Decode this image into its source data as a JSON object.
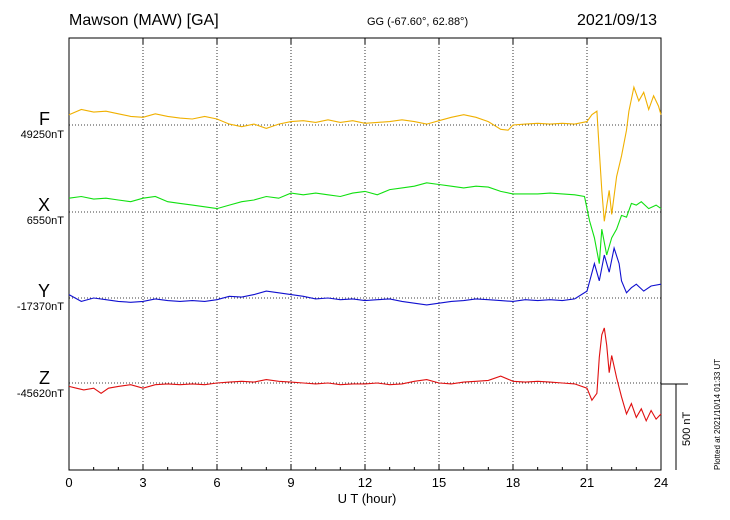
{
  "header": {
    "title": "Mawson (MAW)  [GA]",
    "coords": "GG (-67.60°,  62.88°)",
    "date": "2021/09/13"
  },
  "footer": {
    "plotted": "Plotted at 2021/10/14 01:33 UT",
    "scale": "500 nT"
  },
  "components": [
    {
      "letter": "F",
      "baseline": "49250nT",
      "color": "#f0b000"
    },
    {
      "letter": "X",
      "baseline": "6550nT",
      "color": "#10e010"
    },
    {
      "letter": "Y",
      "baseline": "-17370nT",
      "color": "#1010d0"
    },
    {
      "letter": "Z",
      "baseline": "-45620nT",
      "color": "#e01010"
    }
  ],
  "chart_data": {
    "type": "line",
    "xlabel": "U T (hour)",
    "xlim": [
      0,
      24
    ],
    "xticks": [
      "0",
      "3",
      "6",
      "9",
      "12",
      "15",
      "18",
      "21",
      "24"
    ],
    "ylabel": "",
    "scale_bar_nT": 500,
    "grid": true,
    "series": [
      {
        "name": "F",
        "color": "#f0b000",
        "baseline_nT": 49250,
        "points": [
          [
            0,
            60
          ],
          [
            0.5,
            90
          ],
          [
            1,
            75
          ],
          [
            1.5,
            80
          ],
          [
            2,
            65
          ],
          [
            2.5,
            50
          ],
          [
            3,
            45
          ],
          [
            3.5,
            65
          ],
          [
            4,
            50
          ],
          [
            4.5,
            40
          ],
          [
            5,
            35
          ],
          [
            5.5,
            50
          ],
          [
            6,
            35
          ],
          [
            6.5,
            5
          ],
          [
            7,
            -10
          ],
          [
            7.5,
            5
          ],
          [
            8,
            -20
          ],
          [
            8.5,
            5
          ],
          [
            9,
            20
          ],
          [
            9.5,
            25
          ],
          [
            10,
            15
          ],
          [
            10.5,
            30
          ],
          [
            11,
            15
          ],
          [
            11.5,
            25
          ],
          [
            12,
            10
          ],
          [
            12.5,
            15
          ],
          [
            13,
            20
          ],
          [
            13.5,
            30
          ],
          [
            14,
            20
          ],
          [
            14.5,
            5
          ],
          [
            15,
            25
          ],
          [
            15.5,
            45
          ],
          [
            16,
            60
          ],
          [
            16.5,
            45
          ],
          [
            17,
            20
          ],
          [
            17.5,
            -25
          ],
          [
            17.8,
            -30
          ],
          [
            18,
            0
          ],
          [
            18.5,
            5
          ],
          [
            19,
            10
          ],
          [
            19.5,
            5
          ],
          [
            20,
            10
          ],
          [
            20.5,
            5
          ],
          [
            21,
            20
          ],
          [
            21.2,
            60
          ],
          [
            21.4,
            80
          ],
          [
            21.5,
            -150
          ],
          [
            21.6,
            -380
          ],
          [
            21.7,
            -560
          ],
          [
            21.8,
            -470
          ],
          [
            21.9,
            -380
          ],
          [
            22,
            -520
          ],
          [
            22.2,
            -300
          ],
          [
            22.4,
            -180
          ],
          [
            22.6,
            -30
          ],
          [
            22.7,
            80
          ],
          [
            22.9,
            220
          ],
          [
            23.1,
            140
          ],
          [
            23.3,
            190
          ],
          [
            23.5,
            90
          ],
          [
            23.7,
            170
          ],
          [
            23.9,
            110
          ],
          [
            24,
            60
          ]
        ]
      },
      {
        "name": "X",
        "color": "#10e010",
        "baseline_nT": 6550,
        "points": [
          [
            0,
            80
          ],
          [
            0.5,
            90
          ],
          [
            1,
            75
          ],
          [
            1.5,
            80
          ],
          [
            2,
            70
          ],
          [
            2.5,
            60
          ],
          [
            3,
            80
          ],
          [
            3.5,
            90
          ],
          [
            4,
            60
          ],
          [
            4.5,
            50
          ],
          [
            5,
            40
          ],
          [
            5.5,
            30
          ],
          [
            6,
            20
          ],
          [
            6.5,
            40
          ],
          [
            7,
            60
          ],
          [
            7.5,
            70
          ],
          [
            8,
            90
          ],
          [
            8.5,
            80
          ],
          [
            9,
            110
          ],
          [
            9.5,
            100
          ],
          [
            10,
            110
          ],
          [
            10.5,
            100
          ],
          [
            11,
            90
          ],
          [
            11.5,
            110
          ],
          [
            12,
            120
          ],
          [
            12.5,
            100
          ],
          [
            13,
            130
          ],
          [
            13.5,
            140
          ],
          [
            14,
            150
          ],
          [
            14.5,
            170
          ],
          [
            15,
            160
          ],
          [
            15.5,
            150
          ],
          [
            16,
            140
          ],
          [
            16.5,
            150
          ],
          [
            17,
            145
          ],
          [
            17.5,
            120
          ],
          [
            18,
            105
          ],
          [
            18.5,
            105
          ],
          [
            19,
            105
          ],
          [
            19.5,
            110
          ],
          [
            20,
            105
          ],
          [
            20.5,
            100
          ],
          [
            20.9,
            90
          ],
          [
            21.1,
            -50
          ],
          [
            21.3,
            -150
          ],
          [
            21.5,
            -300
          ],
          [
            21.6,
            -100
          ],
          [
            21.8,
            -250
          ],
          [
            22,
            -150
          ],
          [
            22.2,
            -100
          ],
          [
            22.4,
            -20
          ],
          [
            22.6,
            -30
          ],
          [
            22.8,
            50
          ],
          [
            23,
            40
          ],
          [
            23.2,
            60
          ],
          [
            23.5,
            20
          ],
          [
            23.8,
            40
          ],
          [
            24,
            20
          ]
        ]
      },
      {
        "name": "Y",
        "color": "#1010d0",
        "baseline_nT": -17370,
        "points": [
          [
            0,
            20
          ],
          [
            0.5,
            -20
          ],
          [
            1,
            0
          ],
          [
            1.5,
            -10
          ],
          [
            2,
            -20
          ],
          [
            2.5,
            -25
          ],
          [
            3,
            -20
          ],
          [
            3.5,
            -5
          ],
          [
            4,
            -15
          ],
          [
            4.5,
            -20
          ],
          [
            5,
            -15
          ],
          [
            5.5,
            -20
          ],
          [
            6,
            -10
          ],
          [
            6.5,
            10
          ],
          [
            7,
            5
          ],
          [
            7.5,
            20
          ],
          [
            8,
            40
          ],
          [
            8.5,
            30
          ],
          [
            9,
            20
          ],
          [
            9.5,
            10
          ],
          [
            10,
            -5
          ],
          [
            10.5,
            0
          ],
          [
            11,
            -10
          ],
          [
            11.5,
            -5
          ],
          [
            12,
            -15
          ],
          [
            12.5,
            -10
          ],
          [
            13,
            -5
          ],
          [
            13.5,
            -20
          ],
          [
            14,
            -30
          ],
          [
            14.5,
            -40
          ],
          [
            15,
            -30
          ],
          [
            15.5,
            -20
          ],
          [
            16,
            -15
          ],
          [
            16.5,
            -5
          ],
          [
            17,
            -10
          ],
          [
            17.5,
            -15
          ],
          [
            18,
            -20
          ],
          [
            18.5,
            -10
          ],
          [
            19,
            -15
          ],
          [
            19.5,
            -10
          ],
          [
            20,
            -15
          ],
          [
            20.5,
            -5
          ],
          [
            21,
            40
          ],
          [
            21.3,
            200
          ],
          [
            21.5,
            100
          ],
          [
            21.7,
            250
          ],
          [
            21.9,
            150
          ],
          [
            22.1,
            290
          ],
          [
            22.3,
            200
          ],
          [
            22.4,
            100
          ],
          [
            22.6,
            30
          ],
          [
            22.8,
            60
          ],
          [
            23,
            80
          ],
          [
            23.3,
            40
          ],
          [
            23.6,
            70
          ],
          [
            24,
            80
          ]
        ]
      },
      {
        "name": "Z",
        "color": "#e01010",
        "baseline_nT": -45620,
        "points": [
          [
            0,
            -20
          ],
          [
            0.3,
            -30
          ],
          [
            0.6,
            -40
          ],
          [
            1,
            -30
          ],
          [
            1.3,
            -60
          ],
          [
            1.6,
            -30
          ],
          [
            2,
            -20
          ],
          [
            2.5,
            -10
          ],
          [
            3,
            -30
          ],
          [
            3.5,
            -10
          ],
          [
            4,
            -5
          ],
          [
            4.5,
            -10
          ],
          [
            5,
            -5
          ],
          [
            5.5,
            -10
          ],
          [
            6,
            0
          ],
          [
            6.5,
            5
          ],
          [
            7,
            10
          ],
          [
            7.5,
            5
          ],
          [
            8,
            20
          ],
          [
            8.5,
            10
          ],
          [
            9,
            5
          ],
          [
            9.5,
            0
          ],
          [
            10,
            -5
          ],
          [
            10.5,
            0
          ],
          [
            11,
            -10
          ],
          [
            11.5,
            -5
          ],
          [
            12,
            -5
          ],
          [
            12.5,
            0
          ],
          [
            13,
            -10
          ],
          [
            13.5,
            -5
          ],
          [
            14,
            10
          ],
          [
            14.5,
            20
          ],
          [
            15,
            0
          ],
          [
            15.5,
            -5
          ],
          [
            16,
            5
          ],
          [
            16.5,
            10
          ],
          [
            17,
            15
          ],
          [
            17.5,
            40
          ],
          [
            18,
            10
          ],
          [
            18.5,
            5
          ],
          [
            19,
            10
          ],
          [
            19.5,
            5
          ],
          [
            20,
            0
          ],
          [
            20.5,
            -5
          ],
          [
            21,
            -30
          ],
          [
            21.2,
            -100
          ],
          [
            21.4,
            -60
          ],
          [
            21.5,
            150
          ],
          [
            21.6,
            280
          ],
          [
            21.7,
            320
          ],
          [
            21.8,
            220
          ],
          [
            21.9,
            60
          ],
          [
            22,
            160
          ],
          [
            22.2,
            30
          ],
          [
            22.4,
            -80
          ],
          [
            22.6,
            -180
          ],
          [
            22.8,
            -120
          ],
          [
            23,
            -200
          ],
          [
            23.2,
            -150
          ],
          [
            23.4,
            -220
          ],
          [
            23.6,
            -160
          ],
          [
            23.8,
            -210
          ],
          [
            24,
            -180
          ]
        ]
      }
    ]
  }
}
